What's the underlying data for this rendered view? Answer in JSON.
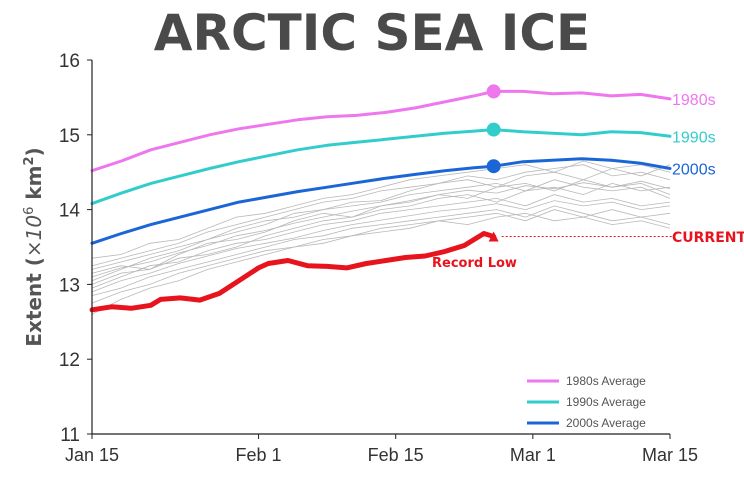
{
  "chart_data": {
    "type": "line",
    "title": "ARCTIC SEA ICE",
    "ylabel_text": "Extent (",
    "ylabel_math": "×10",
    "ylabel_exp": "6",
    "ylabel_unit": " km",
    "ylabel_unit_exp": "2",
    "ylabel_close": ")",
    "ylim": [
      11,
      16
    ],
    "yticks": [
      11,
      12,
      13,
      14,
      15,
      16
    ],
    "xlim": [
      0,
      59
    ],
    "xticks": [
      {
        "x": 0,
        "label": "Jan 15"
      },
      {
        "x": 17,
        "label": "Feb 1"
      },
      {
        "x": 31,
        "label": "Feb 15"
      },
      {
        "x": 45,
        "label": "Mar 1"
      },
      {
        "x": 59,
        "label": "Mar 15"
      }
    ],
    "grid": false,
    "current_day": 41,
    "series": [
      {
        "name": "1980s Average",
        "end_label": "1980s",
        "color": "#ee77ee",
        "x": [
          0,
          3,
          6,
          9,
          12,
          15,
          18,
          21,
          24,
          27,
          30,
          33,
          36,
          39,
          41,
          44,
          47,
          50,
          53,
          56,
          59
        ],
        "values": [
          14.52,
          14.65,
          14.8,
          14.9,
          15.0,
          15.08,
          15.14,
          15.2,
          15.24,
          15.26,
          15.3,
          15.36,
          15.44,
          15.52,
          15.58,
          15.58,
          15.55,
          15.56,
          15.52,
          15.54,
          15.48
        ]
      },
      {
        "name": "1990s Average",
        "end_label": "1990s",
        "color": "#33cccc",
        "x": [
          0,
          3,
          6,
          9,
          12,
          15,
          18,
          21,
          24,
          27,
          30,
          33,
          36,
          39,
          41,
          44,
          47,
          50,
          53,
          56,
          59
        ],
        "values": [
          14.08,
          14.22,
          14.35,
          14.45,
          14.55,
          14.64,
          14.72,
          14.8,
          14.86,
          14.9,
          14.94,
          14.98,
          15.02,
          15.05,
          15.07,
          15.04,
          15.02,
          15.0,
          15.04,
          15.03,
          14.98
        ]
      },
      {
        "name": "2000s Average",
        "end_label": "2000s",
        "color": "#1b66d6",
        "x": [
          0,
          3,
          6,
          9,
          12,
          15,
          18,
          21,
          24,
          27,
          30,
          33,
          36,
          39,
          41,
          44,
          47,
          50,
          53,
          56,
          59
        ],
        "values": [
          13.55,
          13.68,
          13.8,
          13.9,
          14.0,
          14.1,
          14.17,
          14.24,
          14.3,
          14.36,
          14.42,
          14.47,
          14.52,
          14.56,
          14.58,
          14.64,
          14.66,
          14.68,
          14.66,
          14.62,
          14.55
        ]
      },
      {
        "name": "Current",
        "color": "#e8141d",
        "x": [
          0,
          2,
          4,
          6,
          7,
          9,
          11,
          13,
          15,
          17,
          18,
          20,
          22,
          24,
          26,
          28,
          30,
          32,
          34,
          36,
          38,
          39,
          40,
          41
        ],
        "values": [
          12.66,
          12.7,
          12.68,
          12.72,
          12.8,
          12.82,
          12.79,
          12.88,
          13.05,
          13.22,
          13.28,
          13.32,
          13.25,
          13.24,
          13.22,
          13.28,
          13.32,
          13.36,
          13.38,
          13.44,
          13.52,
          13.6,
          13.68,
          13.64
        ]
      }
    ],
    "current_label": "CURRENT",
    "record_low_label": "Record Low"
  },
  "background_years": [
    [
      13.05,
      13.2,
      13.35,
      13.45,
      13.6,
      13.75,
      13.85,
      13.9,
      14.0,
      14.1,
      14.12,
      14.25,
      14.35,
      14.4,
      14.3,
      14.45,
      14.5,
      14.4,
      14.55,
      14.45,
      14.6
    ],
    [
      13.15,
      13.25,
      13.2,
      13.4,
      13.55,
      13.6,
      13.7,
      13.85,
      13.95,
      13.9,
      14.05,
      14.1,
      14.2,
      14.15,
      14.3,
      14.35,
      14.25,
      14.4,
      14.3,
      14.35,
      14.2
    ],
    [
      12.95,
      13.1,
      13.25,
      13.3,
      13.45,
      13.55,
      13.6,
      13.7,
      13.8,
      13.85,
      13.95,
      14.0,
      14.05,
      14.1,
      14.15,
      14.05,
      14.2,
      14.1,
      14.15,
      14.05,
      14.1
    ],
    [
      13.25,
      13.35,
      13.45,
      13.55,
      13.7,
      13.8,
      13.9,
      14.0,
      14.1,
      14.15,
      14.25,
      14.3,
      14.35,
      14.45,
      14.4,
      14.5,
      14.55,
      14.6,
      14.45,
      14.5,
      14.4
    ],
    [
      12.85,
      12.95,
      13.1,
      13.2,
      13.3,
      13.4,
      13.5,
      13.6,
      13.65,
      13.75,
      13.8,
      13.85,
      13.9,
      13.95,
      14.0,
      13.9,
      14.05,
      13.95,
      13.85,
      13.9,
      13.8
    ],
    [
      13.35,
      13.4,
      13.55,
      13.6,
      13.75,
      13.9,
      13.95,
      14.05,
      14.15,
      14.2,
      14.3,
      14.4,
      14.45,
      14.5,
      14.55,
      14.6,
      14.5,
      14.65,
      14.55,
      14.6,
      14.5
    ],
    [
      13.0,
      13.15,
      13.2,
      13.35,
      13.4,
      13.5,
      13.65,
      13.75,
      13.85,
      13.9,
      14.0,
      14.05,
      14.15,
      14.2,
      14.1,
      14.25,
      14.3,
      14.2,
      14.35,
      14.25,
      14.3
    ],
    [
      12.75,
      12.9,
      13.0,
      13.15,
      13.25,
      13.35,
      13.45,
      13.5,
      13.6,
      13.65,
      13.75,
      13.8,
      13.85,
      13.8,
      13.9,
      13.95,
      13.85,
      13.9,
      13.8,
      13.85,
      13.75
    ],
    [
      13.2,
      13.3,
      13.4,
      13.5,
      13.6,
      13.7,
      13.8,
      13.95,
      14.0,
      14.05,
      14.1,
      14.2,
      14.25,
      14.3,
      14.35,
      14.25,
      14.4,
      14.3,
      14.25,
      14.3,
      14.15
    ],
    [
      12.6,
      12.8,
      12.95,
      13.05,
      13.2,
      13.3,
      13.4,
      13.5,
      13.55,
      13.65,
      13.7,
      13.75,
      13.85,
      13.9,
      13.95,
      13.85,
      14.0,
      13.9,
      14.0,
      13.9,
      13.95
    ],
    [
      13.1,
      13.22,
      13.3,
      13.42,
      13.52,
      13.65,
      13.72,
      13.82,
      13.9,
      13.98,
      14.05,
      14.12,
      14.2,
      14.26,
      14.22,
      14.32,
      14.28,
      14.36,
      14.3,
      14.38,
      14.28
    ],
    [
      12.9,
      13.05,
      13.15,
      13.28,
      13.38,
      13.48,
      13.55,
      13.62,
      13.72,
      13.8,
      13.86,
      13.92,
      13.98,
      14.02,
      14.08,
      14.0,
      14.12,
      14.05,
      14.1,
      14.0,
      14.05
    ]
  ]
}
